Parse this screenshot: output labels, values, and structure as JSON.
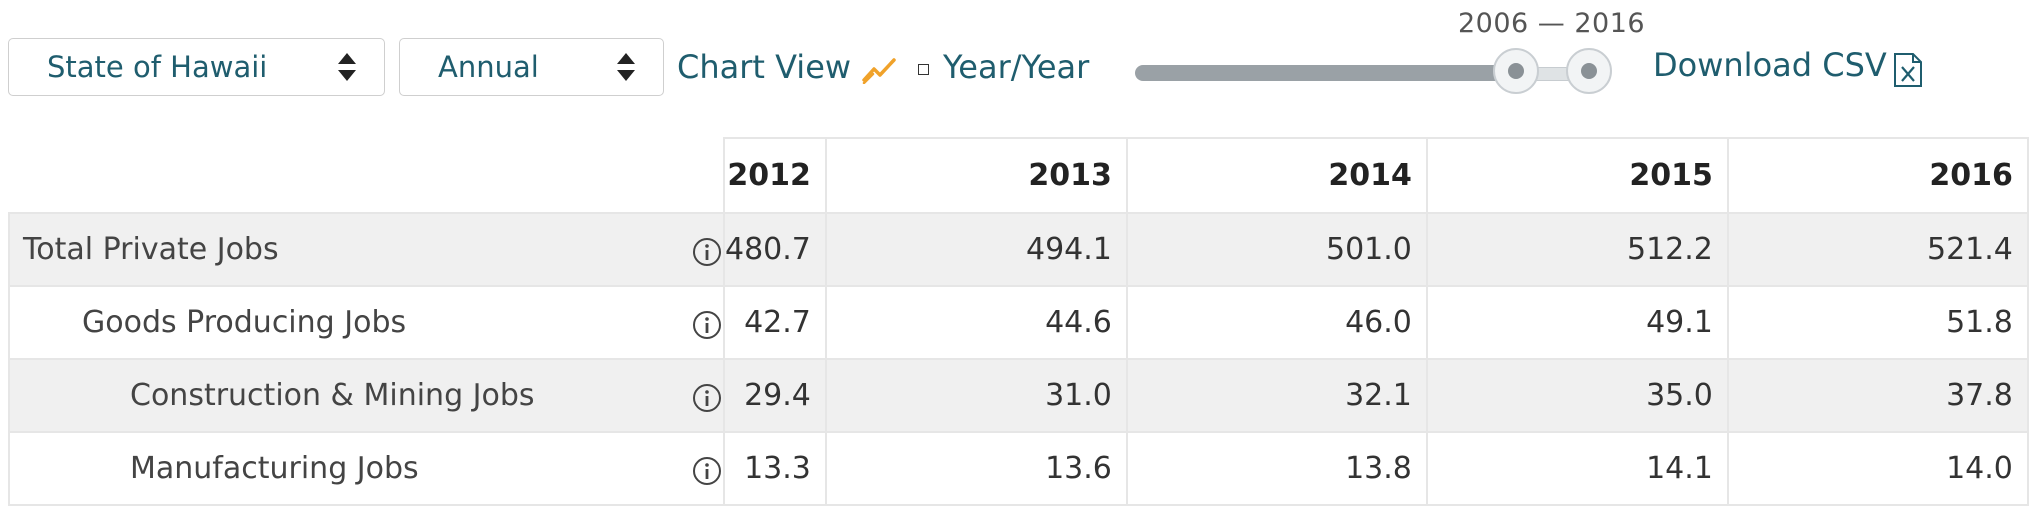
{
  "controls": {
    "region_select": "State of Hawaii",
    "frequency_select": "Annual",
    "chart_view_label": "Chart View",
    "yoy_label": "Year/Year",
    "year_range_label": "2006 — 2016",
    "year_range": {
      "start": 2006,
      "end": 2016
    },
    "download_label": "Download CSV"
  },
  "colors": {
    "link": "#1f5d6e",
    "chart_icon": "#f0a22a",
    "row_shade": "#f0f0f0"
  },
  "icons": [
    "sort-arrows-icon",
    "line-chart-icon",
    "checkbox-icon",
    "excel-file-icon",
    "info-icon"
  ],
  "table": {
    "columns": [
      "2012",
      "2013",
      "2014",
      "2015",
      "2016"
    ],
    "rows": [
      {
        "label": "Total Private Jobs",
        "values": [
          "480.7",
          "494.1",
          "501.0",
          "512.2",
          "521.4"
        ]
      },
      {
        "label": "Goods Producing Jobs",
        "values": [
          "42.7",
          "44.6",
          "46.0",
          "49.1",
          "51.8"
        ]
      },
      {
        "label": "Construction & Mining Jobs",
        "values": [
          "29.4",
          "31.0",
          "32.1",
          "35.0",
          "37.8"
        ]
      },
      {
        "label": "Manufacturing Jobs",
        "values": [
          "13.3",
          "13.6",
          "13.8",
          "14.1",
          "14.0"
        ]
      }
    ]
  }
}
